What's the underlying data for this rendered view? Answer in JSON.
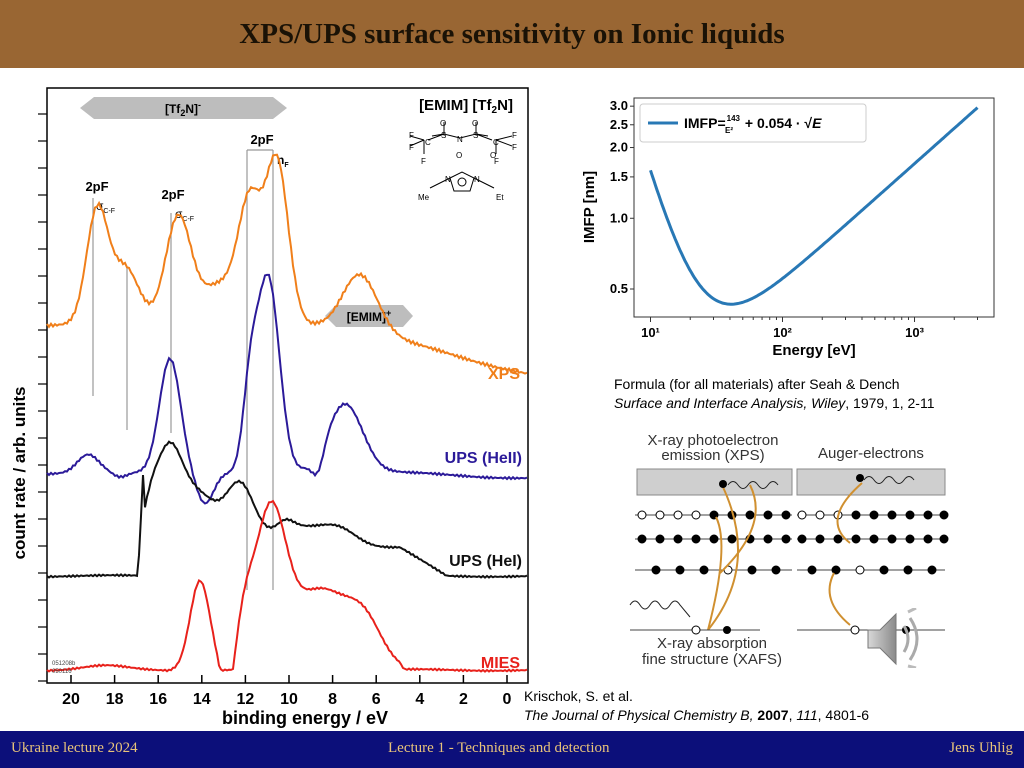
{
  "slide": {
    "title": "XPS/UPS surface sensitivity on Ionic liquids"
  },
  "footer": {
    "left": "Ukraine lecture 2024",
    "center": "Lecture 1 - Techniques and detection",
    "right": "Jens Uhlig"
  },
  "spectra_figure": {
    "ylabel": "count rate / arb. units",
    "xlabel": "binding energy / eV",
    "xticks": [
      "20",
      "18",
      "16",
      "14",
      "12",
      "10",
      "8",
      "6",
      "4",
      "2",
      "0"
    ],
    "bar_tf2n": "[Tf2N]-",
    "bar_emim": "[EMIM]+",
    "compound": "[EMIM] [Tf2N]",
    "peak_2pF_left": "2pF",
    "sigma_left": "σC-F",
    "peak_2pF_mid": "2pF",
    "sigma_mid": "σC-F",
    "peak_2pF_right": "2pF",
    "nF": "nF",
    "struct_me": "Me",
    "struct_et": "Et",
    "series": [
      {
        "name": "XPS",
        "color": "#f07f1a"
      },
      {
        "name": "UPS (HeII)",
        "color": "#2b1a99"
      },
      {
        "name": "UPS (HeI)",
        "color": "#111111"
      },
      {
        "name": "MIES",
        "color": "#e8211b"
      }
    ],
    "stamp": "051208b 050116"
  },
  "chart_data": {
    "type": "line",
    "series": [
      {
        "name": "IMFP = 143/E² + 0.054·√E",
        "formula": "143/E^2 + 0.054*sqrt(E)"
      }
    ],
    "legend": "IMFP=143/E² + 0.054 · √E",
    "legend_placement": "top-left",
    "x_range_eV": [
      10,
      3000
    ],
    "xscale": "log",
    "yscale": "log",
    "xticks": [
      "10¹",
      "10²",
      "10³"
    ],
    "yticks": [
      "0.5",
      "1.0",
      "1.5",
      "2.0",
      "2.5",
      "3.0"
    ],
    "xlabel": "Energy [eV]",
    "ylabel": "IMFP [nm]",
    "grid": false
  },
  "refs": {
    "seah_line1": "Formula (for all materials) after Seah & Dench",
    "seah_line2_journal": "Surface and Interface Analysis, Wiley",
    "seah_line2_rest": ", 1979, 1, 2-11",
    "krischok_line1": "Krischok, S. et al.",
    "krischok_journal": "The Journal of Physical Chemistry B,",
    "krischok_year": "2007",
    "krischok_vol": "111",
    "krischok_pages": ", 4801-6"
  },
  "schematic": {
    "xps_title_1": "X-ray photoelectron",
    "xps_title_2": "emission (XPS)",
    "auger_title": "Auger-electrons",
    "xafs_1": "X-ray absorption",
    "xafs_2": "fine structure (XAFS)"
  },
  "icons": {
    "speaker": "speaker-icon"
  }
}
